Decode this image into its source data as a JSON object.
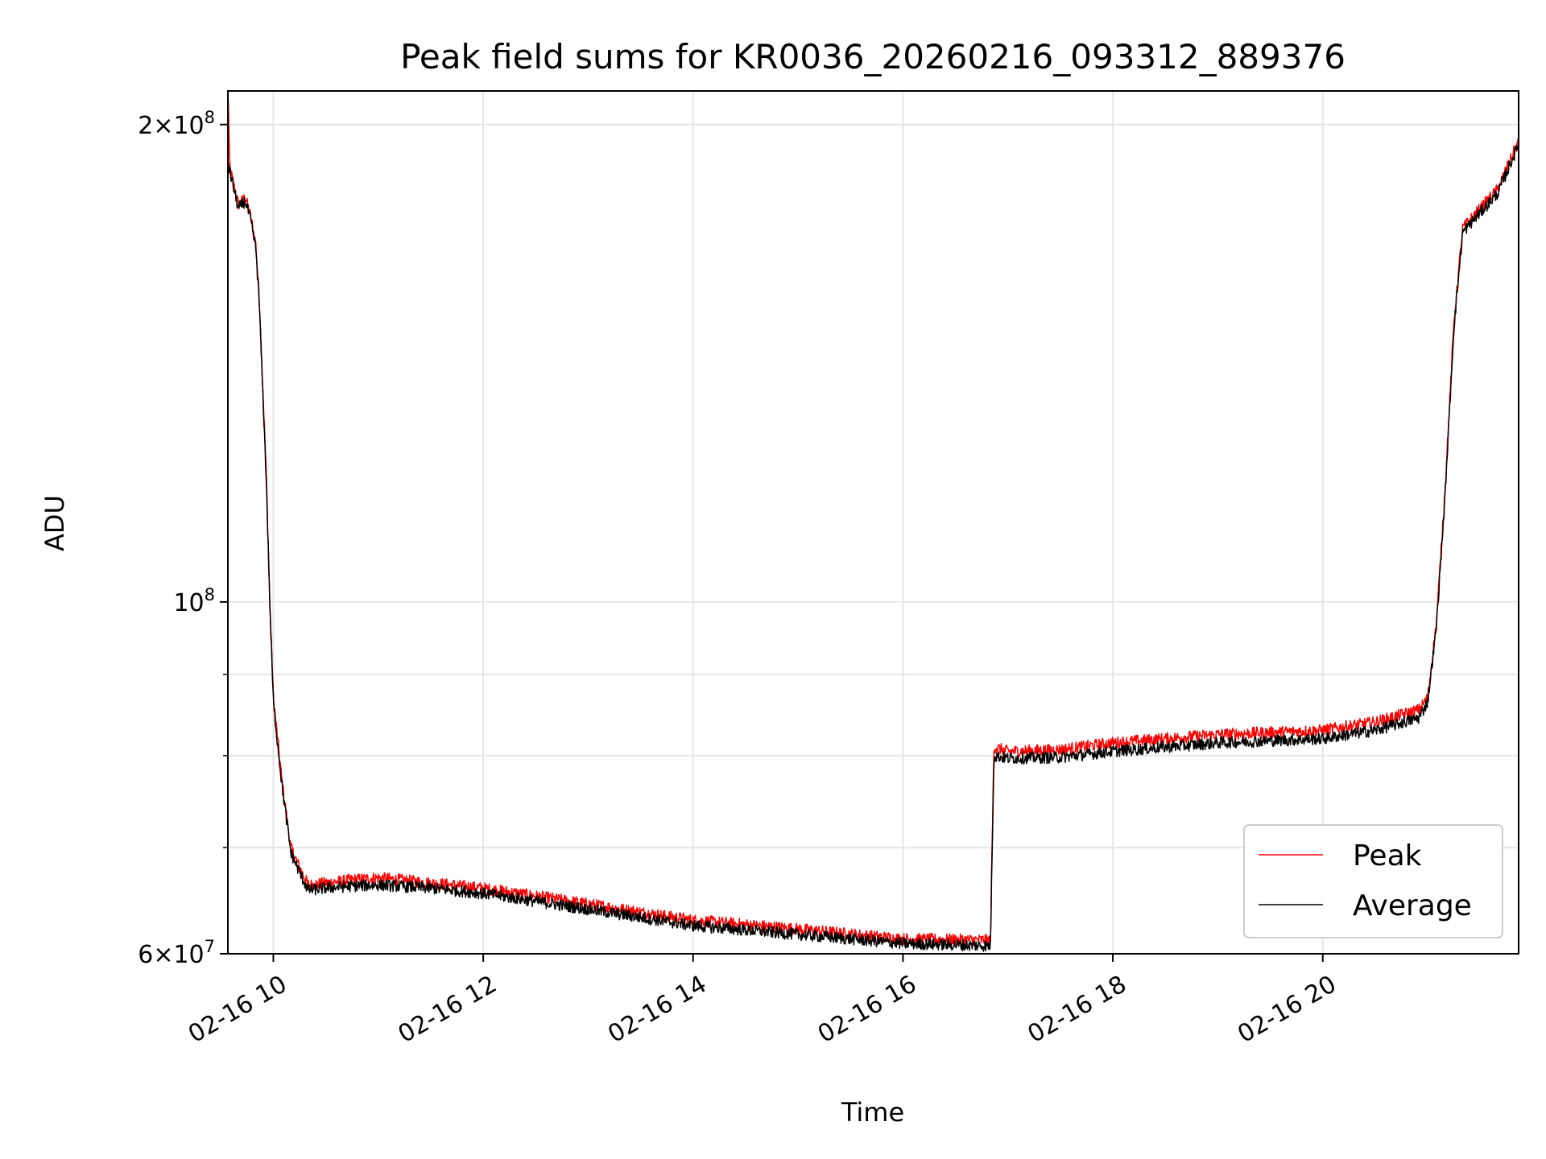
{
  "chart_data": {
    "type": "line",
    "title": "Peak field sums for KR0036_20260216_093312_889376",
    "xlabel": "Time",
    "ylabel": "ADU",
    "yscale": "log",
    "xlim": [
      "2026-02-16 09:34",
      "2026-02-16 21:52"
    ],
    "ylim": [
      60000000,
      210000000
    ],
    "grid": true,
    "legend_position": "lower-right",
    "x_ticks": [
      {
        "value": "2026-02-16 10:00",
        "label": "02-16 10"
      },
      {
        "value": "2026-02-16 12:00",
        "label": "02-16 12"
      },
      {
        "value": "2026-02-16 14:00",
        "label": "02-16 14"
      },
      {
        "value": "2026-02-16 16:00",
        "label": "02-16 16"
      },
      {
        "value": "2026-02-16 18:00",
        "label": "02-16 18"
      },
      {
        "value": "2026-02-16 20:00",
        "label": "02-16 20"
      }
    ],
    "y_major_ticks": [
      {
        "value": 60000000,
        "mantissa": "6",
        "exponent": "7"
      },
      {
        "value": 100000000,
        "mantissa": "",
        "exponent": "8"
      },
      {
        "value": 200000000,
        "mantissa": "2",
        "exponent": "8"
      }
    ],
    "y_minor_ticks": [
      70000000,
      80000000,
      90000000
    ],
    "series": [
      {
        "name": "Peak",
        "color": "#ff0000",
        "x": [
          "2026-02-16 09:34",
          "2026-02-16 09:35",
          "2026-02-16 09:36",
          "2026-02-16 09:40",
          "2026-02-16 09:44",
          "2026-02-16 09:47",
          "2026-02-16 09:50",
          "2026-02-16 09:52",
          "2026-02-16 09:56",
          "2026-02-16 09:58",
          "2026-02-16 10:00",
          "2026-02-16 10:05",
          "2026-02-16 10:10",
          "2026-02-16 10:15",
          "2026-02-16 10:20",
          "2026-02-16 10:30",
          "2026-02-16 10:45",
          "2026-02-16 11:00",
          "2026-02-16 11:30",
          "2026-02-16 12:00",
          "2026-02-16 13:00",
          "2026-02-16 14:00",
          "2026-02-16 15:00",
          "2026-02-16 16:00",
          "2026-02-16 16:50",
          "2026-02-16 16:52",
          "2026-02-16 17:00",
          "2026-02-16 17:30",
          "2026-02-16 18:00",
          "2026-02-16 19:00",
          "2026-02-16 20:00",
          "2026-02-16 20:30",
          "2026-02-16 20:55",
          "2026-02-16 21:00",
          "2026-02-16 21:05",
          "2026-02-16 21:10",
          "2026-02-16 21:15",
          "2026-02-16 21:20",
          "2026-02-16 21:30",
          "2026-02-16 21:40",
          "2026-02-16 21:50",
          "2026-02-16 21:52"
        ],
        "values": [
          215000000,
          188000000,
          186000000,
          178000000,
          180000000,
          175000000,
          168000000,
          155000000,
          120000000,
          100000000,
          87000000,
          77000000,
          70000000,
          68000000,
          66300000,
          66500000,
          66800000,
          67000000,
          66500000,
          66000000,
          64500000,
          63000000,
          62200000,
          61300000,
          61200000,
          81000000,
          80500000,
          80700000,
          81500000,
          82500000,
          83000000,
          84000000,
          85500000,
          87000000,
          97000000,
          118000000,
          150000000,
          172000000,
          177000000,
          182000000,
          193000000,
          195000000
        ]
      },
      {
        "name": "Average",
        "color": "#000000",
        "x": [
          "2026-02-16 09:34",
          "2026-02-16 09:35",
          "2026-02-16 09:36",
          "2026-02-16 09:40",
          "2026-02-16 09:44",
          "2026-02-16 09:47",
          "2026-02-16 09:50",
          "2026-02-16 09:52",
          "2026-02-16 09:56",
          "2026-02-16 09:58",
          "2026-02-16 10:00",
          "2026-02-16 10:05",
          "2026-02-16 10:10",
          "2026-02-16 10:15",
          "2026-02-16 10:20",
          "2026-02-16 10:30",
          "2026-02-16 10:45",
          "2026-02-16 11:00",
          "2026-02-16 11:30",
          "2026-02-16 12:00",
          "2026-02-16 13:00",
          "2026-02-16 14:00",
          "2026-02-16 15:00",
          "2026-02-16 16:00",
          "2026-02-16 16:50",
          "2026-02-16 16:52",
          "2026-02-16 17:00",
          "2026-02-16 17:30",
          "2026-02-16 18:00",
          "2026-02-16 19:00",
          "2026-02-16 20:00",
          "2026-02-16 20:30",
          "2026-02-16 20:55",
          "2026-02-16 21:00",
          "2026-02-16 21:05",
          "2026-02-16 21:10",
          "2026-02-16 21:15",
          "2026-02-16 21:20",
          "2026-02-16 21:30",
          "2026-02-16 21:40",
          "2026-02-16 21:50",
          "2026-02-16 21:52"
        ],
        "values": [
          190000000,
          187000000,
          185000000,
          177000000,
          179000000,
          174000000,
          167000000,
          154000000,
          119000000,
          99500000,
          86500000,
          76500000,
          69500000,
          67500000,
          65800000,
          66000000,
          66200000,
          66300000,
          66000000,
          65500000,
          64000000,
          62500000,
          61700000,
          60900000,
          60700000,
          80000000,
          79700000,
          79800000,
          80500000,
          81500000,
          82000000,
          83000000,
          84500000,
          86500000,
          96500000,
          117000000,
          149000000,
          171000000,
          176000000,
          181000000,
          192000000,
          195000000
        ]
      }
    ]
  }
}
